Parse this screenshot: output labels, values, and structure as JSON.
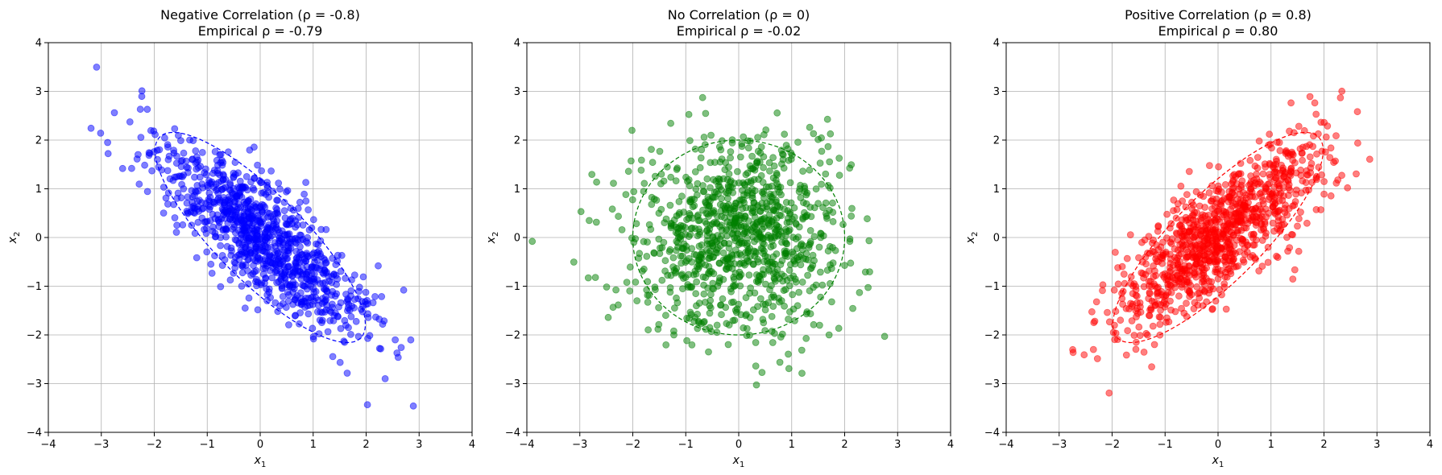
{
  "chart_data": [
    {
      "type": "scatter",
      "title": "Negative Correlation (ρ = -0.8)",
      "subtitle": "Empirical ρ = -0.79",
      "xlabel": "x1",
      "ylabel": "x2",
      "rho": -0.8,
      "empirical_rho": -0.79,
      "n_points": 1000,
      "xlim": [
        -4,
        4
      ],
      "ylim": [
        -4,
        4
      ],
      "ticks": [
        -4,
        -3,
        -2,
        -1,
        0,
        1,
        2,
        3,
        4
      ],
      "grid": true,
      "color": "#0000ff",
      "marker_alpha": 0.5,
      "ellipse": {
        "style": "dashed",
        "n_std": 2
      }
    },
    {
      "type": "scatter",
      "title": "No Correlation (ρ = 0)",
      "subtitle": "Empirical ρ = -0.02",
      "xlabel": "x1",
      "ylabel": "x2",
      "rho": 0,
      "empirical_rho": -0.02,
      "n_points": 1000,
      "xlim": [
        -4,
        4
      ],
      "ylim": [
        -4,
        4
      ],
      "ticks": [
        -4,
        -3,
        -2,
        -1,
        0,
        1,
        2,
        3,
        4
      ],
      "grid": true,
      "color": "#008000",
      "marker_alpha": 0.5,
      "ellipse": {
        "style": "dashed",
        "n_std": 2
      }
    },
    {
      "type": "scatter",
      "title": "Positive Correlation (ρ = 0.8)",
      "subtitle": "Empirical ρ = 0.80",
      "xlabel": "x1",
      "ylabel": "x2",
      "rho": 0.8,
      "empirical_rho": 0.8,
      "n_points": 1000,
      "xlim": [
        -4,
        4
      ],
      "ylim": [
        -4,
        4
      ],
      "ticks": [
        -4,
        -3,
        -2,
        -1,
        0,
        1,
        2,
        3,
        4
      ],
      "grid": true,
      "color": "#ff0000",
      "marker_alpha": 0.5,
      "ellipse": {
        "style": "dashed",
        "n_std": 2
      }
    }
  ]
}
